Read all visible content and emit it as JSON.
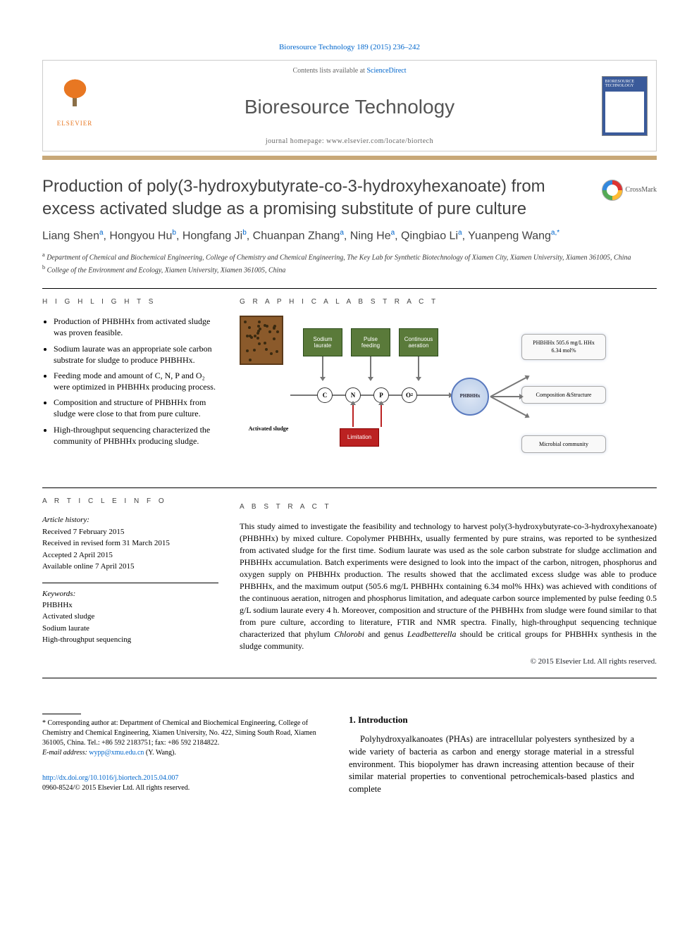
{
  "citation": "Bioresource Technology 189 (2015) 236–242",
  "header": {
    "contents_prefix": "Contents lists available at ",
    "contents_link": "ScienceDirect",
    "journal": "Bioresource Technology",
    "homepage_prefix": "journal homepage: ",
    "homepage": "www.elsevier.com/locate/biortech",
    "publisher": "ELSEVIER",
    "cover_title": "BIORESOURCE TECHNOLOGY"
  },
  "crossmark": "CrossMark",
  "title": "Production of poly(3-hydroxybutyrate-co-3-hydroxyhexanoate) from excess activated sludge as a promising substitute of pure culture",
  "authors_html": "Liang Shen<sup>a</sup>, Hongyou Hu<sup>b</sup>, Hongfang Ji<sup>b</sup>, Chuanpan Zhang<sup>a</sup>, Ning He<sup>a</sup>, Qingbiao Li<sup>a</sup>, Yuanpeng Wang<sup>a,*</sup>",
  "affiliations": {
    "a": "Department of Chemical and Biochemical Engineering, College of Chemistry and Chemical Engineering, The Key Lab for Synthetic Biotechnology of Xiamen City, Xiamen University, Xiamen 361005, China",
    "b": "College of the Environment and Ecology, Xiamen University, Xiamen 361005, China"
  },
  "section_labels": {
    "highlights": "H I G H L I G H T S",
    "graphical": "G R A P H I C A L  A B S T R A C T",
    "article_info": "A R T I C L E   I N F O",
    "abstract": "A B S T R A C T"
  },
  "highlights": [
    "Production of PHBHHx from activated sludge was proven feasible.",
    "Sodium laurate was an appropriate sole carbon substrate for sludge to produce PHBHHx.",
    "Feeding mode and amount of C, N, P and O₂ were optimized in PHBHHx producing process.",
    "Composition and structure of PHBHHx from sludge were close to that from pure culture.",
    "High-throughput sequencing characterized the community of PHBHHx producing sludge."
  ],
  "graphical_abstract": {
    "sludge_label": "Activated sludge",
    "inputs": [
      {
        "label": "Sodium laurate",
        "color": "#5a7a3a"
      },
      {
        "label": "Pulse feeding",
        "color": "#5a7a3a"
      },
      {
        "label": "Continuous aeration",
        "color": "#5a7a3a"
      }
    ],
    "circles": [
      "C",
      "N",
      "P",
      "O₂"
    ],
    "limitation": "Limitation",
    "center": "PHBHHx",
    "outputs": [
      "PHBHHx 505.6 mg/L HHx 6.34 mol%",
      "Composition &Structure",
      "Microbial community"
    ],
    "box_bg": "#f9f9f9",
    "circle_border": "#333333",
    "arrow_color": "#777777",
    "red": "#bb2222",
    "green": "#5a7a3a",
    "sludge_brown": "#8b5a2b",
    "sludge_border": "#5b3a1a"
  },
  "article_info": {
    "history_label": "Article history:",
    "history": [
      "Received 7 February 2015",
      "Received in revised form 31 March 2015",
      "Accepted 2 April 2015",
      "Available online 7 April 2015"
    ],
    "keywords_label": "Keywords:",
    "keywords": [
      "PHBHHx",
      "Activated sludge",
      "Sodium laurate",
      "High-throughput sequencing"
    ]
  },
  "abstract": "This study aimed to investigate the feasibility and technology to harvest poly(3-hydroxybutyrate-co-3-hydroxyhexanoate) (PHBHHx) by mixed culture. Copolymer PHBHHx, usually fermented by pure strains, was reported to be synthesized from activated sludge for the first time. Sodium laurate was used as the sole carbon substrate for sludge acclimation and PHBHHx accumulation. Batch experiments were designed to look into the impact of the carbon, nitrogen, phosphorus and oxygen supply on PHBHHx production. The results showed that the acclimated excess sludge was able to produce PHBHHx, and the maximum output (505.6 mg/L PHBHHx containing 6.34 mol% HHx) was achieved with conditions of the continuous aeration, nitrogen and phosphorus limitation, and adequate carbon source implemented by pulse feeding 0.5 g/L sodium laurate every 4 h. Moreover, composition and structure of the PHBHHx from sludge were found similar to that from pure culture, according to literature, FTIR and NMR spectra. Finally, high-throughput sequencing technique characterized that phylum Chlorobi and genus Leadbetterella should be critical groups for PHBHHx synthesis in the sludge community.",
  "abstract_italics": [
    "Chlorobi",
    "Leadbetterella"
  ],
  "copyright": "© 2015 Elsevier Ltd. All rights reserved.",
  "footnote": {
    "corr": "* Corresponding author at: Department of Chemical and Biochemical Engineering, College of Chemistry and Chemical Engineering, Xiamen University, No. 422, Siming South Road, Xiamen 361005, China. Tel.: +86 592 2183751; fax: +86 592 2184822.",
    "email_label": "E-mail address:",
    "email": "wypp@xmu.edu.cn",
    "email_owner": "(Y. Wang)."
  },
  "doi": {
    "url": "http://dx.doi.org/10.1016/j.biortech.2015.04.007",
    "issn": "0960-8524/© 2015 Elsevier Ltd. All rights reserved."
  },
  "body": {
    "section_number": "1.",
    "section_title": "Introduction",
    "paragraph": "Polyhydroxyalkanoates (PHAs) are intracellular polyesters synthesized by a wide variety of bacteria as carbon and energy storage material in a stressful environment. This biopolymer has drawn increasing attention because of their similar material properties to conventional petrochemicals-based plastics and complete"
  },
  "colors": {
    "link": "#0066cc",
    "brown_rule": "#c8a878",
    "elsevier_orange": "#e87722",
    "heading_gray": "#424242"
  }
}
